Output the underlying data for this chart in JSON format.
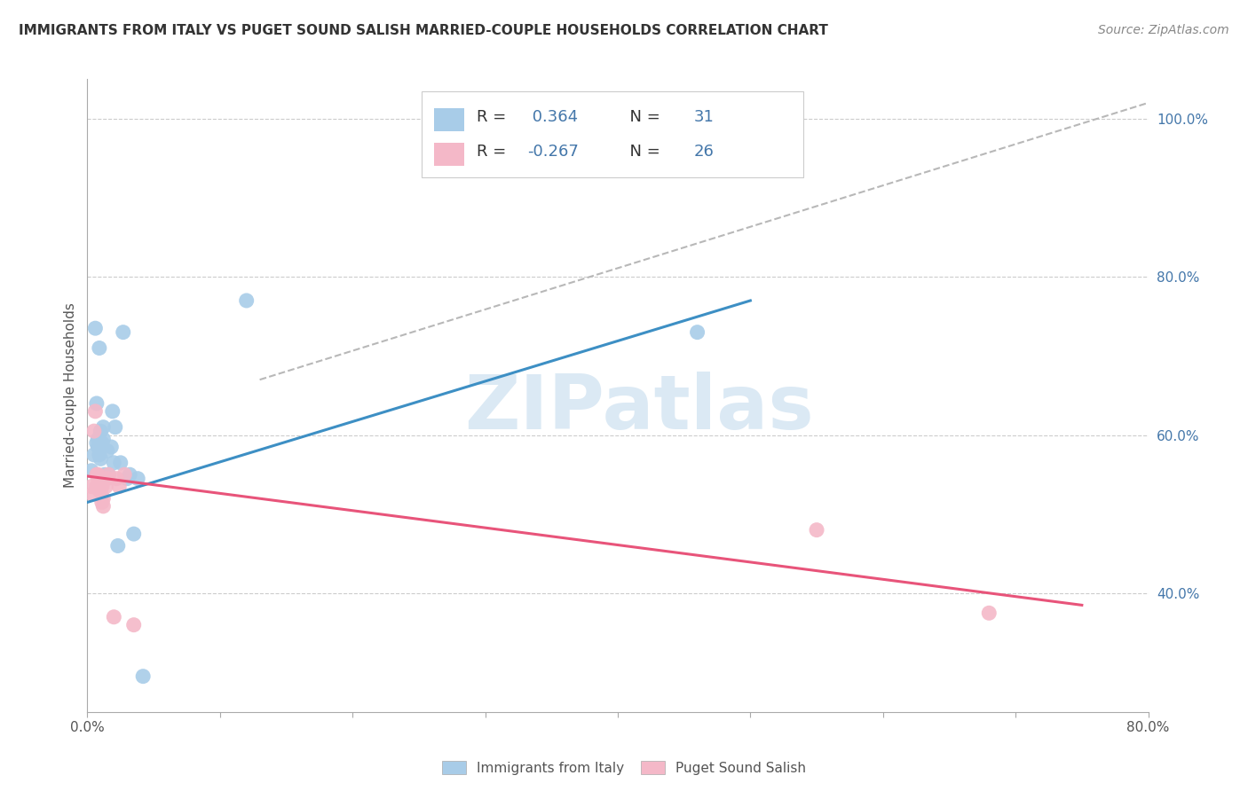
{
  "title": "IMMIGRANTS FROM ITALY VS PUGET SOUND SALISH MARRIED-COUPLE HOUSEHOLDS CORRELATION CHART",
  "source": "Source: ZipAtlas.com",
  "ylabel": "Married-couple Households",
  "xlim": [
    0.0,
    0.8
  ],
  "ylim": [
    0.25,
    1.05
  ],
  "legend_labels": [
    "Immigrants from Italy",
    "Puget Sound Salish"
  ],
  "blue_R": "0.364",
  "blue_N": "31",
  "pink_R": "-0.267",
  "pink_N": "26",
  "blue_color": "#a8cce8",
  "pink_color": "#f4b8c8",
  "blue_line_color": "#3d8fc4",
  "pink_line_color": "#e8547a",
  "gray_line_color": "#b8b8b8",
  "text_color": "#4477aa",
  "dark_text": "#333333",
  "watermark_color": "#cce0f0",
  "blue_scatter_x": [
    0.003,
    0.005,
    0.006,
    0.007,
    0.007,
    0.008,
    0.008,
    0.009,
    0.009,
    0.01,
    0.01,
    0.011,
    0.012,
    0.012,
    0.013,
    0.015,
    0.016,
    0.018,
    0.019,
    0.02,
    0.021,
    0.023,
    0.025,
    0.027,
    0.03,
    0.032,
    0.035,
    0.038,
    0.042,
    0.46,
    0.12
  ],
  "blue_scatter_y": [
    0.555,
    0.575,
    0.735,
    0.64,
    0.59,
    0.585,
    0.595,
    0.71,
    0.575,
    0.605,
    0.57,
    0.59,
    0.595,
    0.61,
    0.55,
    0.58,
    0.55,
    0.585,
    0.63,
    0.565,
    0.61,
    0.46,
    0.565,
    0.73,
    0.545,
    0.55,
    0.475,
    0.545,
    0.295,
    0.73,
    0.77
  ],
  "pink_scatter_x": [
    0.003,
    0.004,
    0.005,
    0.006,
    0.007,
    0.007,
    0.008,
    0.008,
    0.009,
    0.009,
    0.01,
    0.01,
    0.011,
    0.011,
    0.012,
    0.012,
    0.014,
    0.015,
    0.016,
    0.02,
    0.022,
    0.035,
    0.55,
    0.68,
    0.024,
    0.028
  ],
  "pink_scatter_y": [
    0.535,
    0.525,
    0.605,
    0.63,
    0.55,
    0.535,
    0.55,
    0.545,
    0.53,
    0.54,
    0.53,
    0.54,
    0.535,
    0.515,
    0.52,
    0.51,
    0.535,
    0.545,
    0.55,
    0.37,
    0.545,
    0.36,
    0.48,
    0.375,
    0.535,
    0.55
  ],
  "blue_line_x": [
    0.0,
    0.5
  ],
  "blue_line_y": [
    0.515,
    0.77
  ],
  "pink_line_x": [
    0.0,
    0.75
  ],
  "pink_line_y": [
    0.548,
    0.385
  ],
  "gray_line_x": [
    0.13,
    0.8
  ],
  "gray_line_y": [
    0.67,
    1.02
  ]
}
